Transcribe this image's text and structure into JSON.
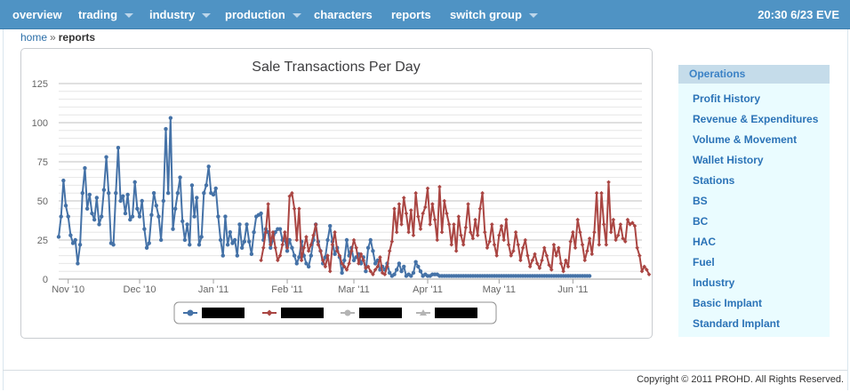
{
  "nav": {
    "items": [
      {
        "label": "overview",
        "dropdown": false
      },
      {
        "label": "trading",
        "dropdown": true
      },
      {
        "label": "industry",
        "dropdown": true
      },
      {
        "label": "production",
        "dropdown": true
      },
      {
        "label": "characters",
        "dropdown": false
      },
      {
        "label": "reports",
        "dropdown": false
      },
      {
        "label": "switch group",
        "dropdown": true
      }
    ],
    "clock": "20:30 6/23 EVE"
  },
  "breadcrumb": {
    "home": "home",
    "separator": "»",
    "current": "reports"
  },
  "sidebar": {
    "title": "Operations",
    "items": [
      "Profit History",
      "Revenue & Expenditures",
      "Volume & Movement",
      "Wallet History",
      "Stations",
      "BS",
      "BC",
      "HAC",
      "Fuel",
      "Industry",
      "Basic Implant",
      "Standard Implant"
    ]
  },
  "footer": {
    "copyright": "Copyright © 2011 PROHD. All Rights Reserved."
  },
  "colors": {
    "accent": "#4f93c4",
    "series1": "#4572a7",
    "series2": "#aa4643",
    "series3": "#b4b4b4",
    "series4": "#b4b4b4"
  },
  "chart_data": {
    "type": "line",
    "title": "Sale Transactions Per Day",
    "xlabel": "",
    "ylabel": "",
    "ylim": [
      0,
      125
    ],
    "yticks": [
      0,
      25,
      50,
      75,
      100,
      125
    ],
    "x_range": [
      "2010-10-28",
      "2011-06-30"
    ],
    "xticks": [
      {
        "label": "Nov '10",
        "date": "2010-11-01"
      },
      {
        "label": "Dec '10",
        "date": "2010-12-01"
      },
      {
        "label": "Jan '11",
        "date": "2011-01-01"
      },
      {
        "label": "Feb '11",
        "date": "2011-02-01"
      },
      {
        "label": "Mar '11",
        "date": "2011-03-01"
      },
      {
        "label": "Apr '11",
        "date": "2011-04-01"
      },
      {
        "label": "May '11",
        "date": "2011-05-01"
      },
      {
        "label": "Jun '11",
        "date": "2011-06-01"
      }
    ],
    "grid": true,
    "legend_position": "bottom-center",
    "legend_names_redacted": true,
    "series": [
      {
        "color": "#4572a7",
        "marker": "circle",
        "start": "2010-10-28",
        "values": [
          27,
          40,
          63,
          47,
          40,
          28,
          23,
          25,
          10,
          22,
          55,
          71,
          45,
          54,
          42,
          38,
          52,
          35,
          40,
          57,
          78,
          55,
          23,
          22,
          55,
          84,
          50,
          53,
          42,
          54,
          38,
          40,
          62,
          45,
          40,
          50,
          32,
          20,
          23,
          41,
          55,
          47,
          40,
          25,
          50,
          96,
          55,
          103,
          32,
          45,
          55,
          65,
          37,
          25,
          35,
          22,
          60,
          40,
          52,
          22,
          27,
          55,
          60,
          72,
          55,
          54,
          58,
          40,
          25,
          15,
          40,
          22,
          30,
          23,
          25,
          15,
          35,
          20,
          24,
          35,
          24,
          16,
          30,
          40,
          41,
          42,
          25,
          32,
          30,
          20,
          25,
          30,
          32,
          32,
          25,
          25,
          18,
          25,
          20,
          15,
          10,
          14,
          24,
          15,
          10,
          8,
          15,
          25,
          35,
          24,
          18,
          10,
          14,
          25,
          34,
          24,
          16,
          20,
          14,
          4,
          12,
          25,
          15,
          20,
          12,
          14,
          16,
          10,
          14,
          5,
          20,
          25,
          18,
          10,
          12,
          6,
          8,
          6,
          10,
          4,
          2,
          3,
          6,
          10,
          5,
          8,
          2,
          3,
          2,
          4,
          11,
          8,
          5,
          2,
          3,
          2,
          2,
          3,
          3,
          3,
          2,
          2,
          2,
          2,
          2,
          2,
          2,
          2,
          2,
          2,
          2,
          2,
          2,
          2,
          2,
          2,
          2,
          2,
          2,
          2,
          2,
          2,
          2,
          2,
          2,
          2,
          2,
          2,
          2,
          2,
          2,
          2,
          2,
          2,
          2,
          2,
          2,
          2,
          2,
          2,
          2,
          2,
          2,
          2,
          2,
          2,
          2,
          2,
          2,
          2,
          2,
          2,
          2,
          2,
          2,
          2,
          2,
          2,
          2,
          2,
          2,
          2,
          2,
          2
        ]
      },
      {
        "color": "#aa4643",
        "marker": "diamond",
        "start": "2011-01-21",
        "values": [
          12,
          20,
          30,
          48,
          22,
          30,
          20,
          12,
          15,
          22,
          30,
          20,
          53,
          55,
          45,
          25,
          45,
          12,
          20,
          27,
          18,
          22,
          28,
          35,
          22,
          18,
          12,
          8,
          15,
          5,
          22,
          30,
          18,
          15,
          10,
          8,
          6,
          10,
          18,
          25,
          20,
          10,
          16,
          12,
          7,
          8,
          5,
          3,
          6,
          8,
          14,
          4,
          3,
          8,
          18,
          24,
          45,
          30,
          48,
          35,
          52,
          42,
          30,
          44,
          28,
          55,
          40,
          32,
          42,
          46,
          58,
          35,
          48,
          38,
          25,
          59,
          30,
          50,
          42,
          35,
          22,
          35,
          18,
          40,
          28,
          22,
          33,
          48,
          30,
          26,
          38,
          28,
          45,
          55,
          30,
          20,
          24,
          35,
          22,
          15,
          28,
          34,
          25,
          38,
          22,
          15,
          18,
          30,
          22,
          12,
          20,
          25,
          15,
          8,
          12,
          16,
          10,
          7,
          12,
          20,
          15,
          9,
          6,
          22,
          15,
          20,
          10,
          5,
          12,
          8,
          24,
          30,
          20,
          38,
          30,
          22,
          12,
          18,
          26,
          16,
          30,
          55,
          22,
          55,
          35,
          22,
          62,
          30,
          38,
          25,
          28,
          35,
          26,
          24,
          38,
          35,
          36,
          34,
          20,
          15,
          5,
          8,
          6,
          3
        ]
      },
      {
        "color": "#b4b4b4",
        "marker": "circle",
        "values": []
      },
      {
        "color": "#b4b4b4",
        "marker": "triangle",
        "values": []
      }
    ]
  }
}
